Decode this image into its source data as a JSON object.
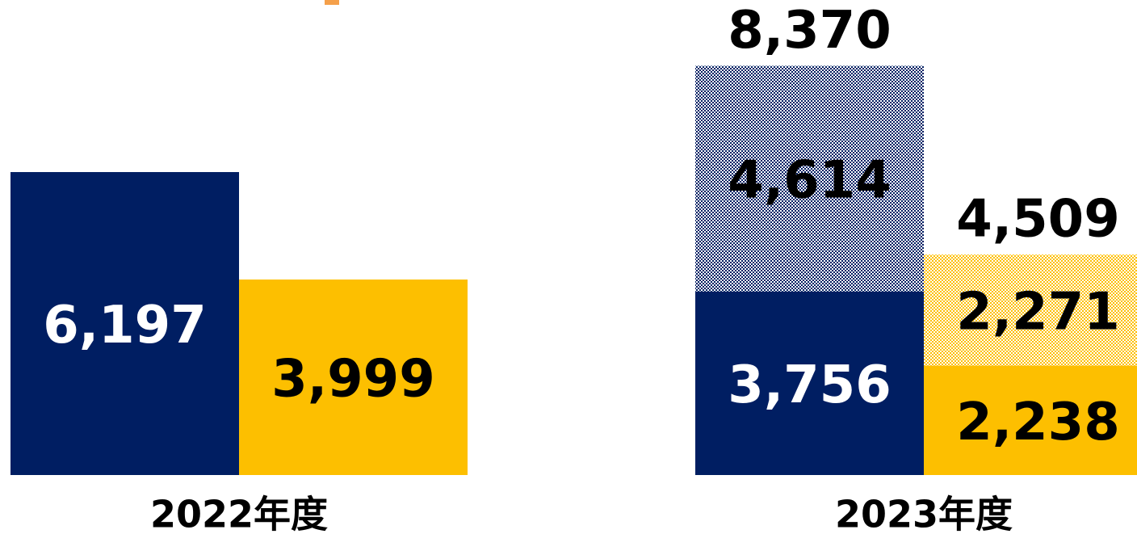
{
  "chart_data": {
    "type": "stacked_grouped_bar",
    "categories": [
      "2022年度",
      "2023年度"
    ],
    "ylim": [
      0,
      9700
    ],
    "series": [
      {
        "stack": 0,
        "color": "#001e62",
        "label_color": "#ffffff",
        "values": [
          6197,
          3756
        ],
        "value_labels": [
          "6,197",
          "3,756"
        ]
      },
      {
        "stack": 0,
        "color": "#001e62",
        "pattern": true,
        "label_color": "#000000",
        "values": [
          null,
          4614
        ],
        "value_labels": [
          null,
          "4,614"
        ]
      },
      {
        "stack": 1,
        "color": "#fdbf00",
        "label_color": "#000000",
        "values": [
          3999,
          2238
        ],
        "value_labels": [
          "3,999",
          "2,238"
        ]
      },
      {
        "stack": 1,
        "color": "#fdbf00",
        "pattern": true,
        "label_color": "#000000",
        "values": [
          null,
          2271
        ],
        "value_labels": [
          null,
          "2,271"
        ]
      }
    ],
    "totals": [
      {
        "category": 1,
        "stack": 0,
        "value": 8370,
        "label": "8,370"
      },
      {
        "category": 1,
        "stack": 1,
        "value": 4509,
        "label": "4,509"
      }
    ]
  }
}
